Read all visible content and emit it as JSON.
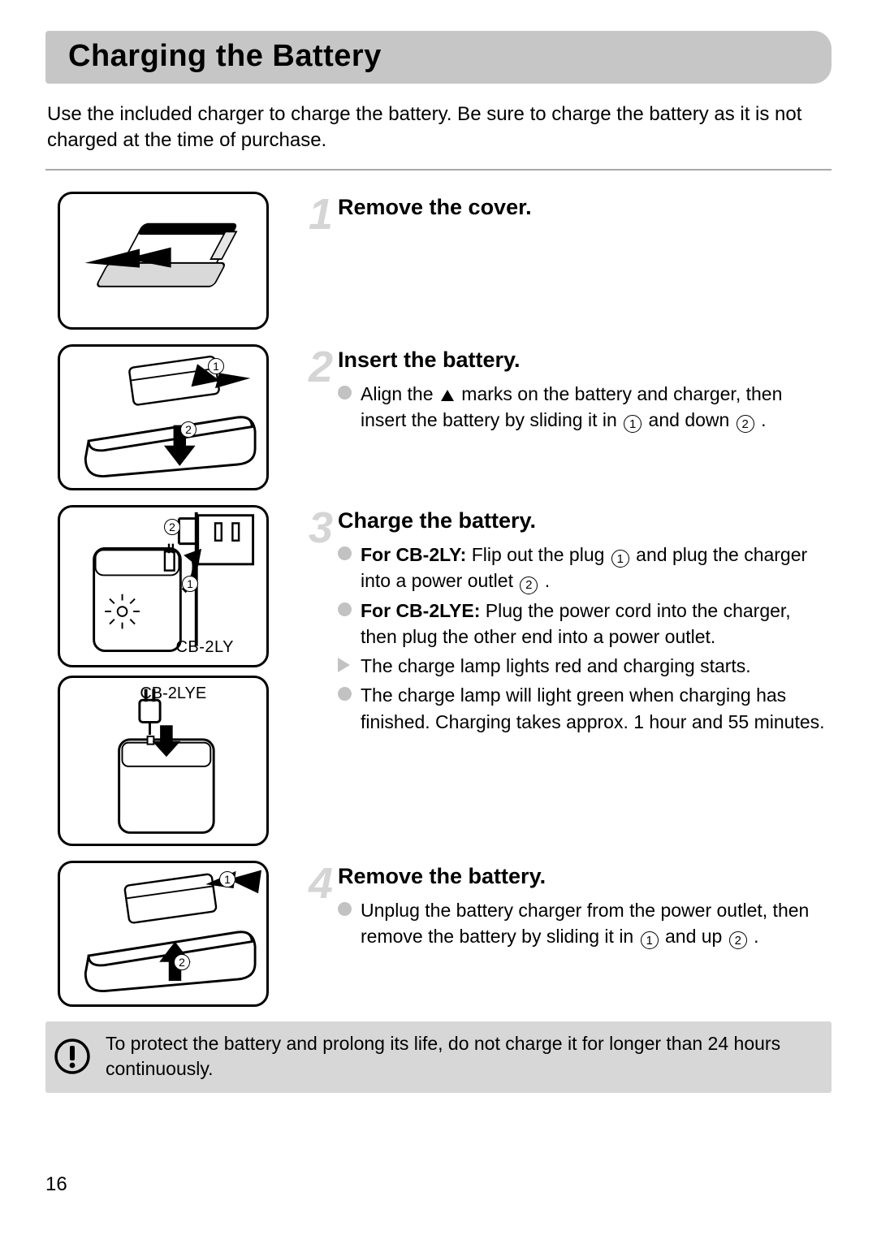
{
  "page": {
    "title": "Charging the Battery",
    "intro": "Use the included charger to charge the battery. Be sure to charge the battery as it is not charged at the time of purchase.",
    "page_number": "16"
  },
  "steps": [
    {
      "num": "1",
      "title": "Remove the cover.",
      "bullets": []
    },
    {
      "num": "2",
      "title": "Insert the battery.",
      "bullets": [
        {
          "kind": "circle",
          "html": "Align the {TRI} marks on the battery and charger, then insert the battery by sliding it in {C1} and down {C2} ."
        }
      ]
    },
    {
      "num": "3",
      "title": "Charge the battery.",
      "img_labels": {
        "a": "CB-2LY",
        "b": "CB-2LYE"
      },
      "bullets": [
        {
          "kind": "circle",
          "html": "{B:For CB-2LY:} Flip out the plug {C1} and plug the charger into a power outlet {C2} ."
        },
        {
          "kind": "circle",
          "html": "{B:For CB-2LYE:} Plug the power cord into the charger, then plug the other end into a power outlet."
        },
        {
          "kind": "tri",
          "html": "The charge lamp lights red and charging starts."
        },
        {
          "kind": "circle",
          "html": "The charge lamp will light green when charging has finished. Charging takes approx. 1 hour and 55 minutes."
        }
      ]
    },
    {
      "num": "4",
      "title": "Remove the battery.",
      "bullets": [
        {
          "kind": "circle",
          "html": "Unplug the battery charger from the power outlet, then remove the battery by sliding it in {C1} and up {C2} ."
        }
      ]
    }
  ],
  "note": "To protect the battery and prolong its life, do not charge it for longer than 24 hours continuously.",
  "colors": {
    "title_bg": "#c6c6c6",
    "step_num": "#d5d5d5",
    "bullet": "#c2c2c2",
    "note_bg": "#d7d7d7",
    "rule": "#a8a8a8"
  }
}
